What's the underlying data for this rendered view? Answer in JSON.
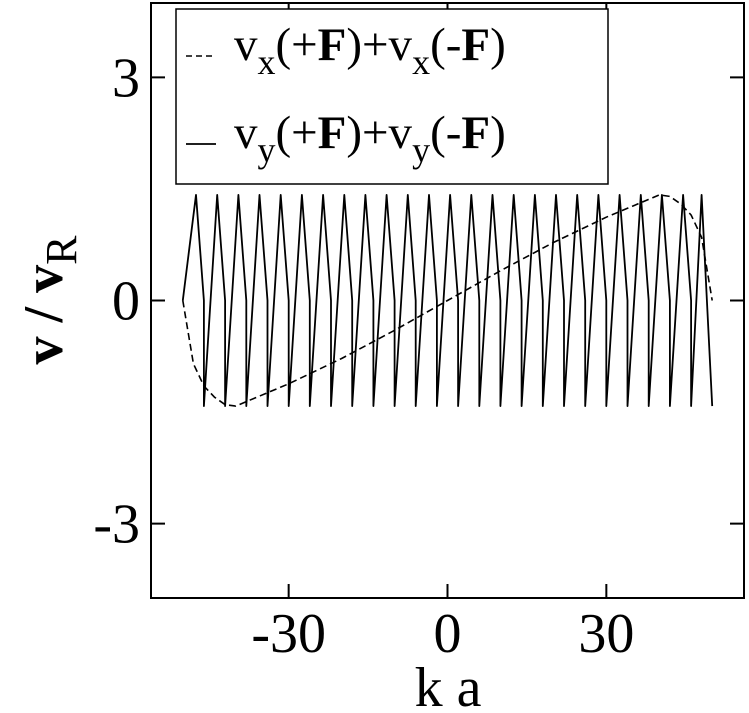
{
  "chart_data": {
    "type": "line",
    "xlabel": "k a",
    "ylabel": {
      "base": "v / v",
      "sub": "R"
    },
    "xlim": [
      -56,
      56
    ],
    "ylim": [
      -4,
      4
    ],
    "xticks": [
      -30,
      0,
      30
    ],
    "xtick_labels": [
      "-30",
      "0",
      "30"
    ],
    "yticks": [
      -3,
      0,
      3
    ],
    "ytick_labels": [
      "-3",
      "0",
      "3"
    ],
    "grid": false,
    "legend_position": "top",
    "series": [
      {
        "name": "vx(+F)+vx(-F)",
        "legend": {
          "parts": [
            {
              "t": "v",
              "bold": false,
              "sub": false
            },
            {
              "t": "x",
              "bold": false,
              "sub": true
            },
            {
              "t": "(+",
              "bold": false,
              "sub": false
            },
            {
              "t": "F",
              "bold": true,
              "sub": false
            },
            {
              "t": ")+v",
              "bold": false,
              "sub": false
            },
            {
              "t": "x",
              "bold": false,
              "sub": true
            },
            {
              "t": "(-",
              "bold": false,
              "sub": false
            },
            {
              "t": "F",
              "bold": true,
              "sub": false
            },
            {
              "t": ")",
              "bold": false,
              "sub": false
            }
          ]
        },
        "style": "dashed",
        "x": [
          -50,
          -48,
          -46,
          -44,
          -42,
          -40,
          -30,
          -20,
          -10,
          0,
          10,
          20,
          30,
          40,
          42,
          44,
          46,
          48,
          50
        ],
        "y": [
          0,
          -0.85,
          -1.15,
          -1.3,
          -1.4,
          -1.42,
          -1.12,
          -0.78,
          -0.4,
          0.0,
          0.4,
          0.78,
          1.12,
          1.42,
          1.4,
          1.3,
          1.15,
          0.85,
          0
        ]
      },
      {
        "name": "vy(+F)+vy(-F)",
        "legend": {
          "parts": [
            {
              "t": "v",
              "bold": false,
              "sub": false
            },
            {
              "t": "y",
              "bold": false,
              "sub": true
            },
            {
              "t": "(+",
              "bold": false,
              "sub": false
            },
            {
              "t": "F",
              "bold": true,
              "sub": false
            },
            {
              "t": ")+v",
              "bold": false,
              "sub": false
            },
            {
              "t": "y",
              "bold": false,
              "sub": true
            },
            {
              "t": "(-",
              "bold": false,
              "sub": false
            },
            {
              "t": "F",
              "bold": true,
              "sub": false
            },
            {
              "t": ")",
              "bold": false,
              "sub": false
            }
          ]
        },
        "style": "solid",
        "x": [
          -50,
          -47.5,
          -46,
          -46,
          -43.5,
          -42,
          -42,
          -39.5,
          -38,
          -38,
          -35.5,
          -34,
          -34,
          -31.5,
          -30,
          -30,
          -27.5,
          -26,
          -26,
          -23.5,
          -22,
          -22,
          -19.5,
          -18,
          -18,
          -15.5,
          -14,
          -14,
          -11.5,
          -10,
          -10,
          -7.5,
          -6,
          -6,
          -3.5,
          -2,
          -2,
          0.5,
          2,
          2,
          4.5,
          6,
          6,
          8.5,
          10,
          10,
          12.5,
          14,
          14,
          16.5,
          18,
          18,
          20.5,
          22,
          22,
          24.5,
          26,
          26,
          28.5,
          30,
          30,
          32.5,
          34,
          34,
          36.5,
          38,
          38,
          40.5,
          42,
          42,
          44.5,
          46,
          46,
          48,
          50
        ],
        "y": [
          0,
          1.42,
          0,
          -1.42,
          1.42,
          0,
          -1.42,
          1.42,
          0,
          -1.42,
          1.42,
          0,
          -1.42,
          1.42,
          0,
          -1.42,
          1.42,
          0,
          -1.42,
          1.42,
          0,
          -1.42,
          1.42,
          0,
          -1.42,
          1.42,
          0,
          -1.42,
          1.42,
          0,
          -1.42,
          1.42,
          0,
          -1.42,
          1.42,
          0,
          -1.42,
          1.42,
          0,
          -1.42,
          1.42,
          0,
          -1.42,
          1.42,
          0,
          -1.42,
          1.42,
          0,
          -1.42,
          1.42,
          0,
          -1.42,
          1.42,
          0,
          -1.42,
          1.42,
          0,
          -1.42,
          1.42,
          0,
          -1.42,
          1.42,
          0,
          -1.42,
          1.42,
          0,
          -1.42,
          1.42,
          0,
          -1.42,
          1.42,
          0,
          -1.42,
          1.42,
          -1.42
        ]
      }
    ]
  }
}
